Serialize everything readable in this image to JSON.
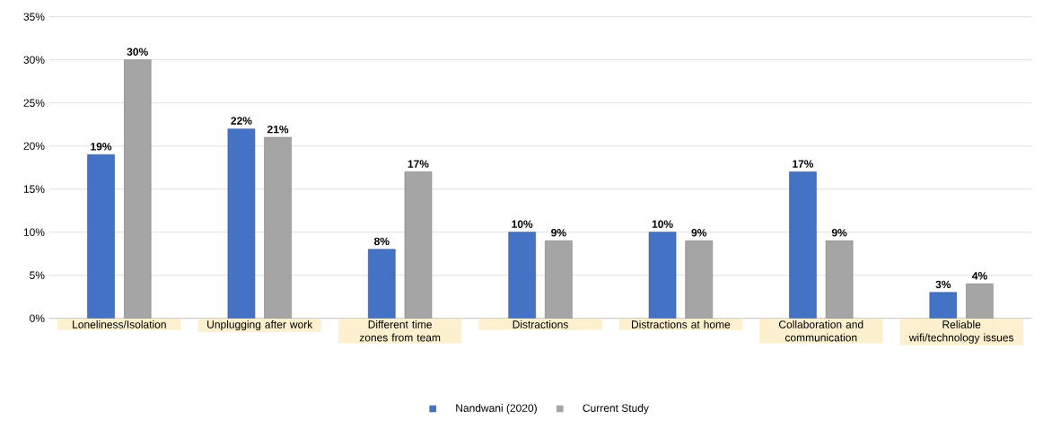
{
  "chart_data": {
    "type": "bar",
    "categories": [
      "Loneliness/Isolation",
      "Unplugging after work",
      "Different time zones from team",
      "Distractions",
      "Distractions at home",
      "Collaboration and communication",
      "Reliable wifi/technology issues"
    ],
    "series": [
      {
        "name": "Nandwani (2020)",
        "color": "#4472c4",
        "values": [
          19,
          22,
          8,
          10,
          10,
          17,
          3
        ],
        "value_labels": [
          "19%",
          "22%",
          "8%",
          "10%",
          "10%",
          "17%",
          "3%"
        ]
      },
      {
        "name": "Current Study",
        "color": "#a5a5a5",
        "values": [
          30,
          21,
          17,
          9,
          9,
          9,
          4
        ],
        "value_labels": [
          "30%",
          "21%",
          "17%",
          "9%",
          "9%",
          "9%",
          "4%"
        ]
      }
    ],
    "ylim": [
      0,
      35
    ],
    "yticks": [
      {
        "value": 0,
        "label": "0%"
      },
      {
        "value": 5,
        "label": "5%"
      },
      {
        "value": 10,
        "label": "10%"
      },
      {
        "value": 15,
        "label": "15%"
      },
      {
        "value": 20,
        "label": "20%"
      },
      {
        "value": 25,
        "label": "25%"
      },
      {
        "value": 30,
        "label": "30%"
      },
      {
        "value": 35,
        "label": "35%"
      }
    ],
    "grid": "y",
    "legend": "bottom"
  }
}
